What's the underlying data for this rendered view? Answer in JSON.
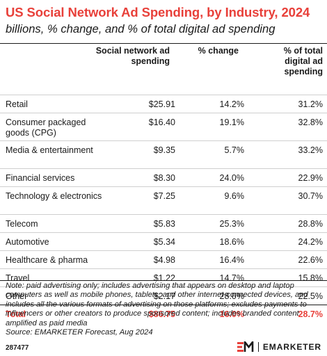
{
  "title": "US Social Network Ad Spending, by Industry, 2024",
  "subtitle": "billions, % change, and % of total digital ad spending",
  "headers": {
    "col1": "Social network ad spending",
    "col2": "% change",
    "col3": "% of total digital ad spending"
  },
  "chart_data": {
    "type": "table",
    "columns": [
      "",
      "Social network ad spending",
      "% change",
      "% of total digital ad spending"
    ],
    "rows": [
      {
        "label": "Retail",
        "spending": "$25.91",
        "change": "14.2%",
        "share": "31.2%"
      },
      {
        "label": "Consumer packaged goods (CPG)",
        "spending": "$16.40",
        "change": "19.1%",
        "share": "32.8%"
      },
      {
        "label": "Media & entertainment",
        "spending": "$9.35",
        "change": "5.7%",
        "share": "33.2%"
      },
      {
        "label": "Financial services",
        "spending": "$8.30",
        "change": "24.0%",
        "share": "22.9%"
      },
      {
        "label": "Technology & electronics",
        "spending": "$7.25",
        "change": "9.6%",
        "share": "30.7%"
      },
      {
        "label": "Telecom",
        "spending": "$5.83",
        "change": "25.3%",
        "share": "28.8%"
      },
      {
        "label": "Automotive",
        "spending": "$5.34",
        "change": "18.6%",
        "share": "24.2%"
      },
      {
        "label": "Healthcare & pharma",
        "spending": "$4.98",
        "change": "16.4%",
        "share": "22.6%"
      },
      {
        "label": "Travel",
        "spending": "$1.22",
        "change": "14.7%",
        "share": "15.8%"
      },
      {
        "label": "Other",
        "spending": "$2.17",
        "change": "28.0%",
        "share": "22.5%"
      }
    ],
    "total": {
      "label": "Total",
      "spending": "$86.75",
      "change": "16.0%",
      "share": "28.7%"
    }
  },
  "note": "Note: paid advertising only; includes advertising that appears on desktop and laptop computers as well as mobile phones, tablets, and other internet-connected devices, and includes all the various formats of advertising on those platforms; excludes payments to influencers or other creators to produce sponsored content; includes branded content amplified as paid media",
  "source": "Source: EMARKETER Forecast, Aug 2024",
  "chart_id": "287477",
  "brand": {
    "name": "EMARKETER",
    "logo_icon": "em-logo-icon",
    "accent_color": "#e8403a"
  }
}
